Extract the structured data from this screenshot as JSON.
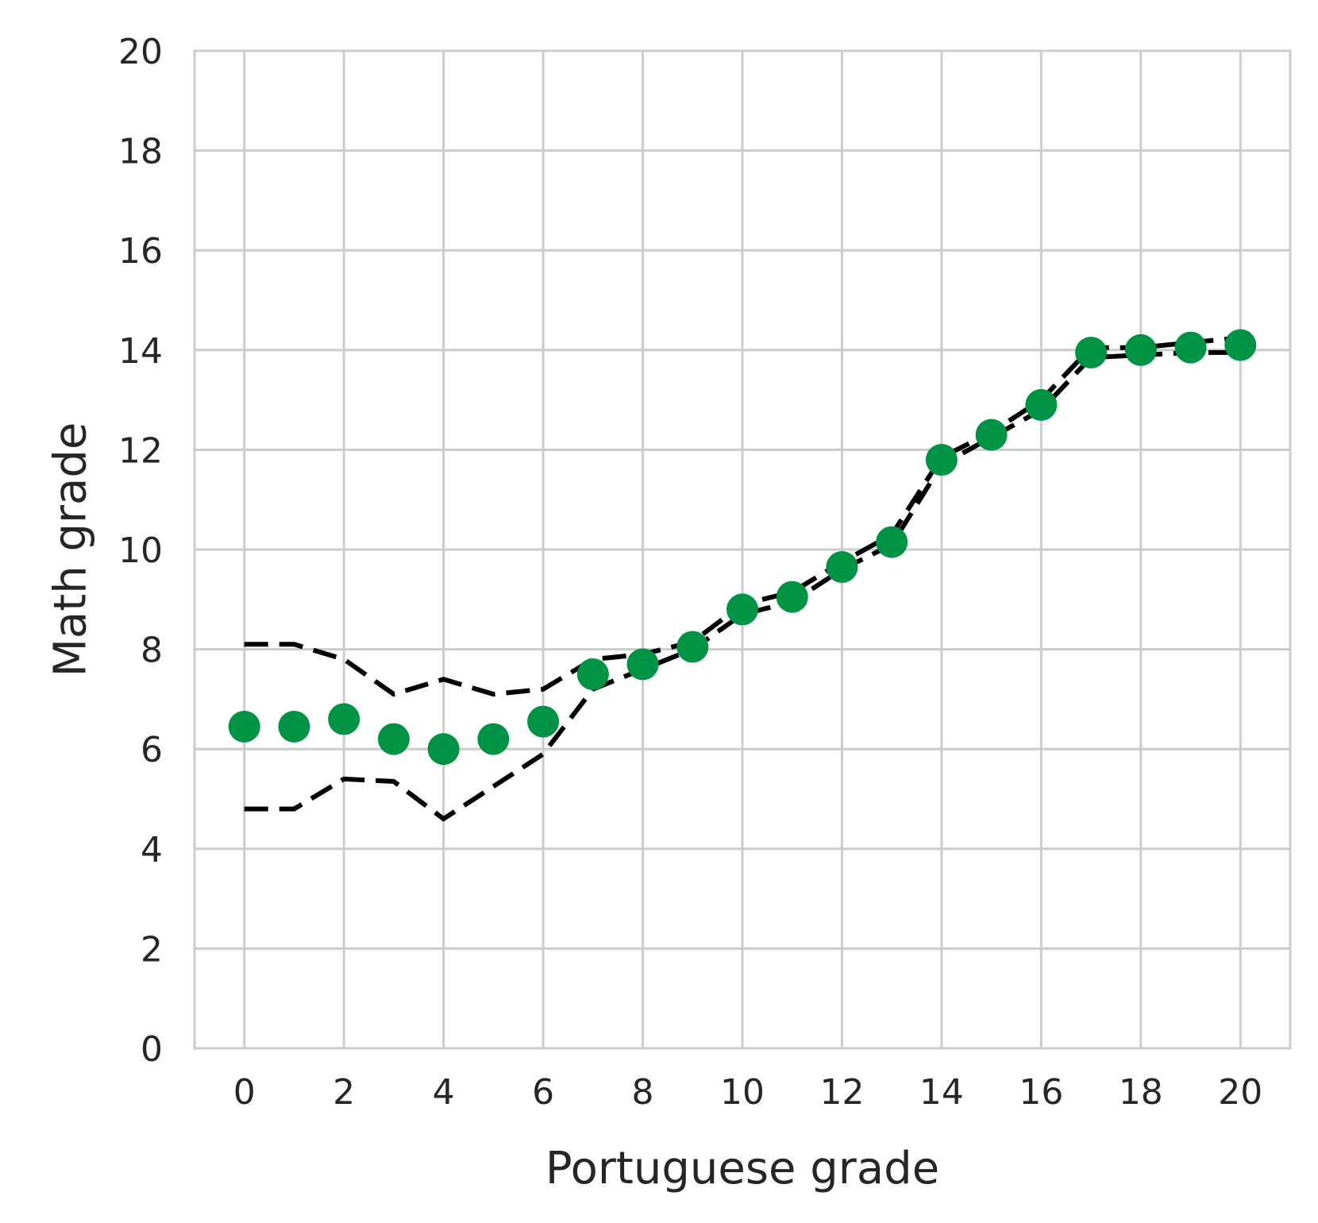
{
  "chart_data": {
    "type": "scatter",
    "title": "",
    "xlabel": "Portuguese grade",
    "ylabel": "Math grade",
    "xlim": [
      -1,
      21
    ],
    "ylim": [
      0,
      20
    ],
    "x_ticks": [
      0,
      2,
      4,
      6,
      8,
      10,
      12,
      14,
      16,
      18,
      20
    ],
    "y_ticks": [
      0,
      2,
      4,
      6,
      8,
      10,
      12,
      14,
      16,
      18,
      20
    ],
    "grid": true,
    "legend": "none",
    "colors": {
      "points": "#009245",
      "band": "#000000",
      "grid": "#cccccc",
      "text": "#262626"
    },
    "series": [
      {
        "kind": "points",
        "x": [
          0,
          1,
          2,
          3,
          4,
          5,
          6,
          7,
          8,
          9,
          10,
          11,
          12,
          13,
          14,
          15,
          16,
          17,
          18,
          19,
          20
        ],
        "y": [
          6.45,
          6.45,
          6.6,
          6.2,
          6.0,
          6.2,
          6.55,
          7.5,
          7.7,
          8.05,
          8.8,
          9.05,
          9.65,
          10.15,
          11.8,
          12.3,
          12.9,
          13.95,
          14.0,
          14.05,
          14.1
        ]
      },
      {
        "kind": "upper-band",
        "x": [
          0,
          1,
          2,
          3,
          4,
          5,
          6,
          7,
          8,
          9,
          10,
          11,
          12,
          13,
          14,
          15,
          16,
          17,
          18,
          19,
          20
        ],
        "y": [
          8.1,
          8.1,
          7.8,
          7.1,
          7.4,
          7.1,
          7.2,
          7.8,
          7.9,
          8.15,
          8.9,
          9.15,
          9.75,
          10.3,
          11.85,
          12.35,
          13.0,
          14.05,
          14.05,
          14.15,
          14.25
        ]
      },
      {
        "kind": "lower-band",
        "x": [
          0,
          1,
          2,
          3,
          4,
          5,
          6,
          7,
          8,
          9,
          10,
          11,
          12,
          13,
          14,
          15,
          16,
          17,
          18,
          19,
          20
        ],
        "y": [
          4.8,
          4.8,
          5.4,
          5.35,
          4.6,
          5.25,
          5.9,
          7.2,
          7.6,
          8.0,
          8.7,
          8.95,
          9.6,
          10.1,
          11.7,
          12.25,
          12.8,
          13.85,
          13.9,
          13.95,
          13.95
        ]
      }
    ]
  }
}
